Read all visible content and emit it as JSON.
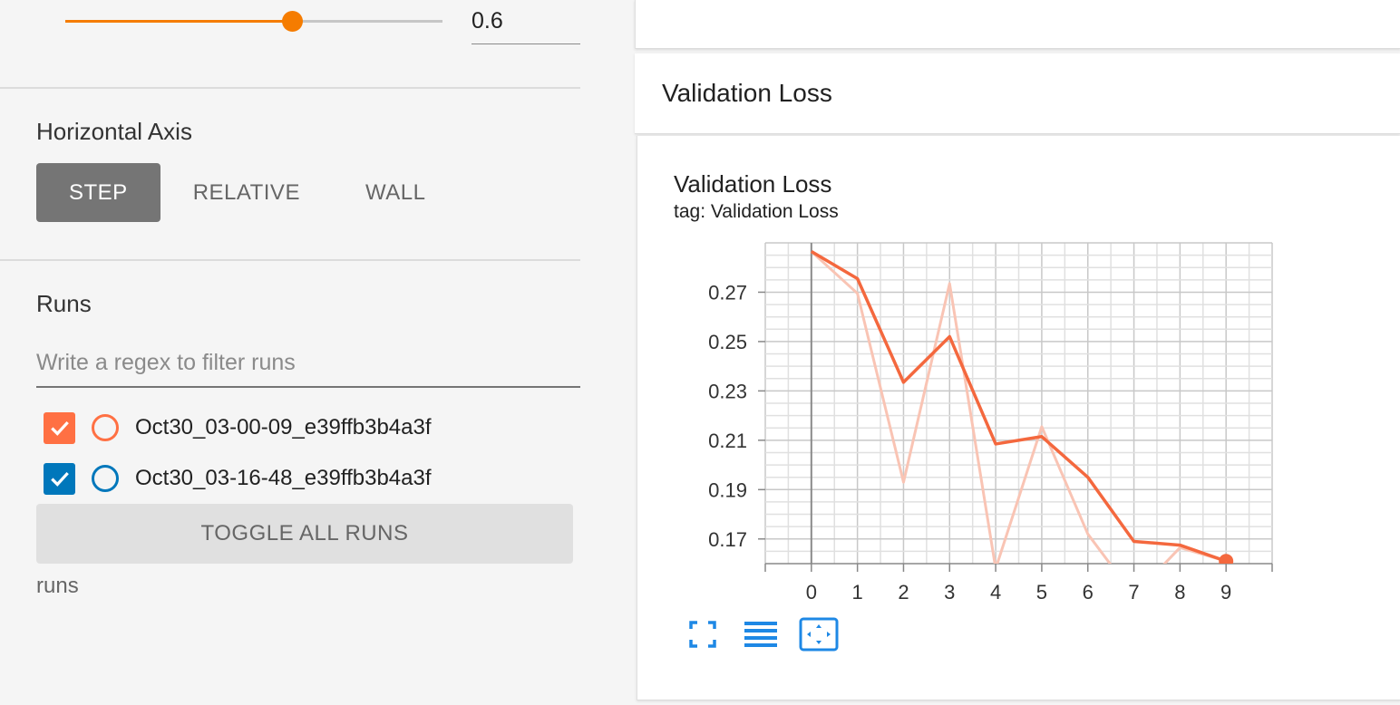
{
  "sidebar": {
    "smoothing": {
      "value": 0.6,
      "value_text": "0.6"
    },
    "horizontal_axis": {
      "title": "Horizontal Axis",
      "options": [
        "STEP",
        "RELATIVE",
        "WALL"
      ],
      "selected": "STEP"
    },
    "runs": {
      "title": "Runs",
      "filter_placeholder": "Write a regex to filter runs",
      "items": [
        {
          "label": "Oct30_03-00-09_e39ffb3b4a3f",
          "checked": true,
          "color": "#ff7043"
        },
        {
          "label": "Oct30_03-16-48_e39ffb3b4a3f",
          "checked": true,
          "color": "#0077bb"
        }
      ],
      "toggle_label": "TOGGLE ALL RUNS",
      "footer": "runs"
    }
  },
  "main": {
    "category_title": "Validation Loss",
    "chart": {
      "title": "Validation Loss",
      "tag": "tag: Validation Loss"
    },
    "toolbar": {
      "icons": [
        "fullscreen-icon",
        "data-table-icon",
        "fit-domain-icon"
      ]
    }
  },
  "chart_data": {
    "type": "line",
    "title": "Validation Loss",
    "subtitle": "tag: Validation Loss",
    "xlabel": "",
    "ylabel": "",
    "x": [
      0,
      1,
      2,
      3,
      4,
      5,
      6,
      7,
      8,
      9
    ],
    "xticks": [
      "0",
      "1",
      "2",
      "3",
      "4",
      "5",
      "6",
      "7",
      "8",
      "9"
    ],
    "yticks": [
      "0.27",
      "0.25",
      "0.23",
      "0.21",
      "0.19",
      "0.17"
    ],
    "ylim": [
      0.16,
      0.29
    ],
    "xlim": [
      -1,
      10
    ],
    "grid": true,
    "series": [
      {
        "values": [
          0.2865,
          0.2755,
          0.2335,
          0.252,
          0.2085,
          0.2115,
          0.195,
          0.169,
          0.1675,
          0.161
        ],
        "color": "#f4683e",
        "style": "smoothed"
      },
      {
        "values": [
          0.2865,
          0.2695,
          0.193,
          0.2735,
          0.158,
          0.2155,
          0.172,
          0.147,
          0.1665,
          0.161
        ],
        "color": "#f9c4b4",
        "style": "raw"
      }
    ]
  }
}
